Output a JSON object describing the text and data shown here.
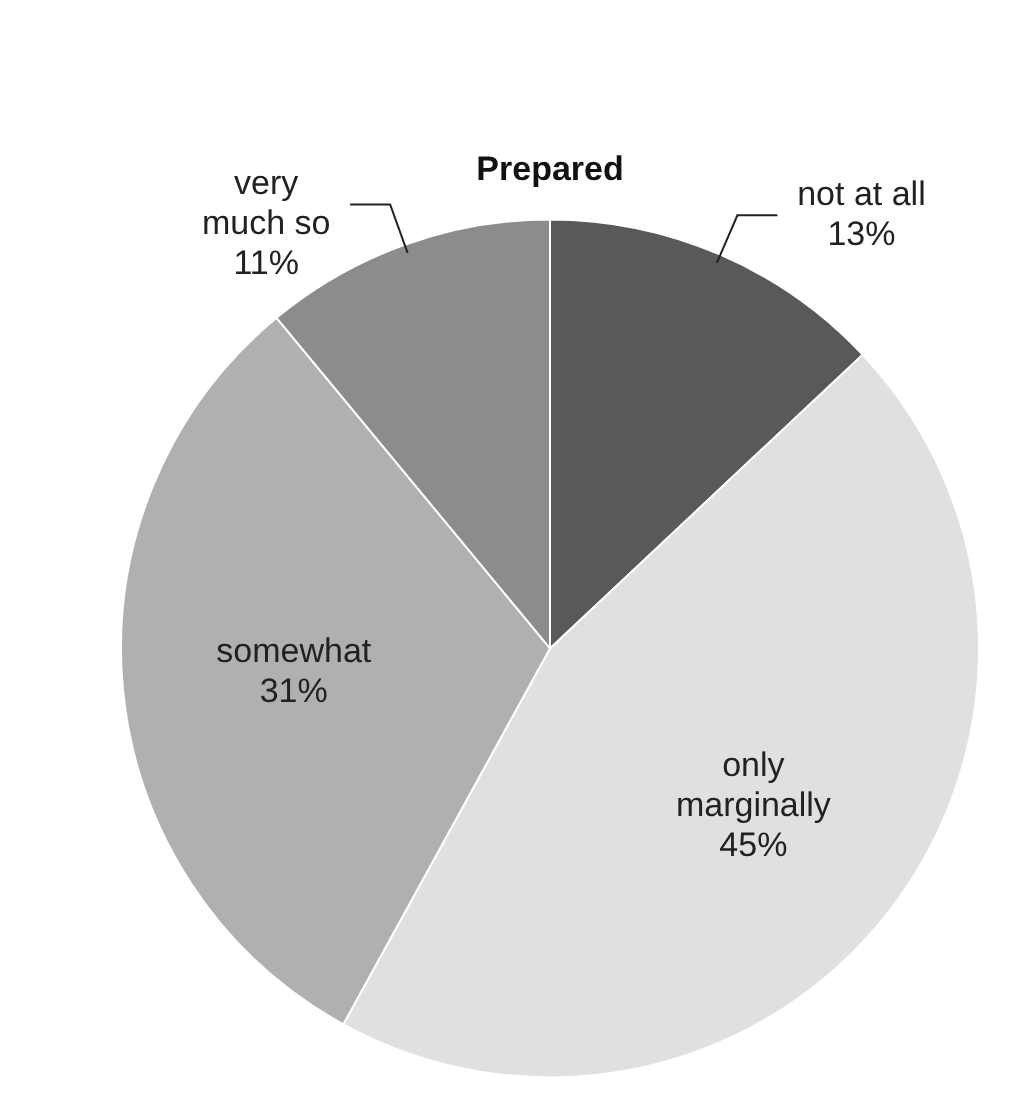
{
  "chart_data": {
    "type": "pie",
    "title": "Prepared",
    "categories": [
      "not at all",
      "only marginally",
      "somewhat",
      "very much so"
    ],
    "values": [
      13,
      45,
      31,
      11
    ],
    "colors": [
      "#595959",
      "#e0e0e0",
      "#b0b0b0",
      "#8c8c8c"
    ],
    "value_labels": [
      "13%",
      "45%",
      "31%",
      "11%"
    ],
    "legend": false
  }
}
